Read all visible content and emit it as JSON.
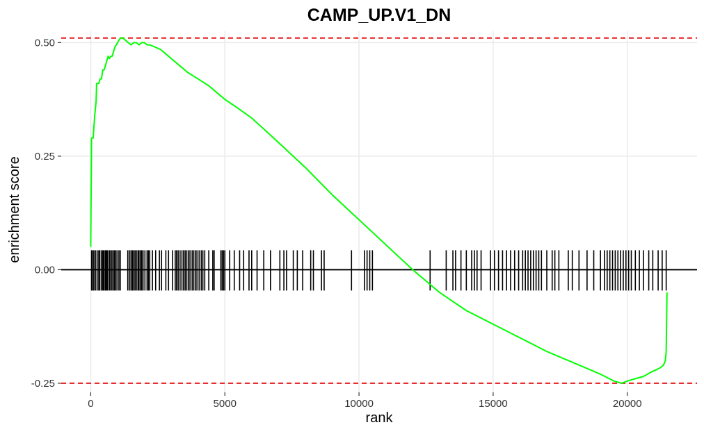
{
  "chart_data": {
    "type": "line",
    "title": "CAMP_UP.V1_DN",
    "xlabel": "rank",
    "ylabel": "enrichment score",
    "xlim": [
      -1100,
      22600
    ],
    "ylim": [
      -0.27,
      0.525
    ],
    "x_ticks": [
      {
        "value": 0,
        "label": "0"
      },
      {
        "value": 5000,
        "label": "5000"
      },
      {
        "value": 10000,
        "label": "10000"
      },
      {
        "value": 15000,
        "label": "15000"
      },
      {
        "value": 20000,
        "label": "20000"
      }
    ],
    "y_ticks": [
      {
        "value": -0.25,
        "label": "-0.25"
      },
      {
        "value": 0.0,
        "label": "0.00"
      },
      {
        "value": 0.25,
        "label": "0.25"
      },
      {
        "value": 0.5,
        "label": "0.50"
      }
    ],
    "grid": true,
    "colors": {
      "curve": "#00ff00",
      "threshold": "#e41a1c",
      "zero_line": "#000000",
      "ticks": "#000000",
      "grid": "#ebebeb"
    },
    "thresholds": [
      0.51,
      -0.25
    ],
    "zero_line": 0,
    "series": [
      {
        "x": [
          0,
          30,
          60,
          90,
          150,
          200,
          220,
          260,
          300,
          350,
          400,
          450,
          500,
          550,
          600,
          650,
          700,
          750,
          800,
          850,
          900,
          950,
          1000,
          1050,
          1100,
          1200,
          1300,
          1400,
          1500,
          1600,
          1700,
          1800,
          1900,
          2000,
          2100,
          2200,
          2400,
          2600,
          2800,
          3000,
          3300,
          3600,
          4000,
          4400,
          4700,
          5000,
          5500,
          6000,
          7000,
          8000,
          9000,
          10000,
          11000,
          12000,
          13000,
          14000,
          15000,
          16000,
          17000,
          18000,
          19000,
          19500,
          19800,
          20000,
          20300,
          20600,
          20900,
          21100,
          21250,
          21350,
          21420,
          21450,
          21480
        ],
        "y": [
          0.05,
          0.29,
          0.29,
          0.29,
          0.34,
          0.37,
          0.41,
          0.41,
          0.41,
          0.42,
          0.42,
          0.44,
          0.44,
          0.45,
          0.46,
          0.47,
          0.465,
          0.47,
          0.47,
          0.48,
          0.49,
          0.495,
          0.5,
          0.505,
          0.51,
          0.51,
          0.505,
          0.5,
          0.495,
          0.5,
          0.5,
          0.495,
          0.5,
          0.5,
          0.495,
          0.495,
          0.49,
          0.485,
          0.475,
          0.465,
          0.45,
          0.435,
          0.42,
          0.405,
          0.39,
          0.375,
          0.355,
          0.334,
          0.28,
          0.225,
          0.165,
          0.11,
          0.055,
          0.0,
          -0.05,
          -0.09,
          -0.12,
          -0.15,
          -0.18,
          -0.205,
          -0.23,
          -0.245,
          -0.25,
          -0.245,
          -0.24,
          -0.235,
          -0.225,
          -0.22,
          -0.215,
          -0.21,
          -0.2,
          -0.18,
          -0.05
        ]
      }
    ],
    "hits": [
      30,
      80,
      120,
      180,
      240,
      300,
      340,
      400,
      450,
      490,
      540,
      580,
      620,
      680,
      720,
      780,
      830,
      880,
      930,
      980,
      1050,
      1100,
      1380,
      1440,
      1500,
      1550,
      1600,
      1650,
      1700,
      1760,
      1800,
      1850,
      1900,
      1950,
      2020,
      2100,
      2150,
      2200,
      2300,
      2420,
      2560,
      2640,
      2800,
      2900,
      3050,
      3150,
      3200,
      3260,
      3330,
      3400,
      3460,
      3520,
      3580,
      3640,
      3700,
      3780,
      3840,
      3900,
      3960,
      4040,
      4120,
      4180,
      4250,
      4400,
      4550,
      4600,
      4850,
      4900,
      4950,
      5000,
      5180,
      5350,
      5550,
      5700,
      5900,
      6000,
      6200,
      6450,
      6700,
      7050,
      7200,
      7300,
      7550,
      7700,
      7900,
      8200,
      8300,
      8600,
      8700,
      9720,
      10200,
      10300,
      10400,
      10500,
      12650,
      13250,
      13500,
      13600,
      13800,
      14000,
      14200,
      14300,
      14400,
      14550,
      14900,
      15050,
      15200,
      15350,
      15500,
      15650,
      15800,
      15950,
      16100,
      16200,
      16300,
      16400,
      16500,
      16600,
      16700,
      16800,
      17000,
      17200,
      17300,
      17450,
      17800,
      17950,
      18200,
      18500,
      18750,
      19000,
      19150,
      19250,
      19350,
      19450,
      19550,
      19650,
      19750,
      19850,
      19950,
      20050,
      20150,
      20300,
      20450,
      20600,
      20800,
      20950,
      21150,
      21300,
      21450
    ]
  }
}
